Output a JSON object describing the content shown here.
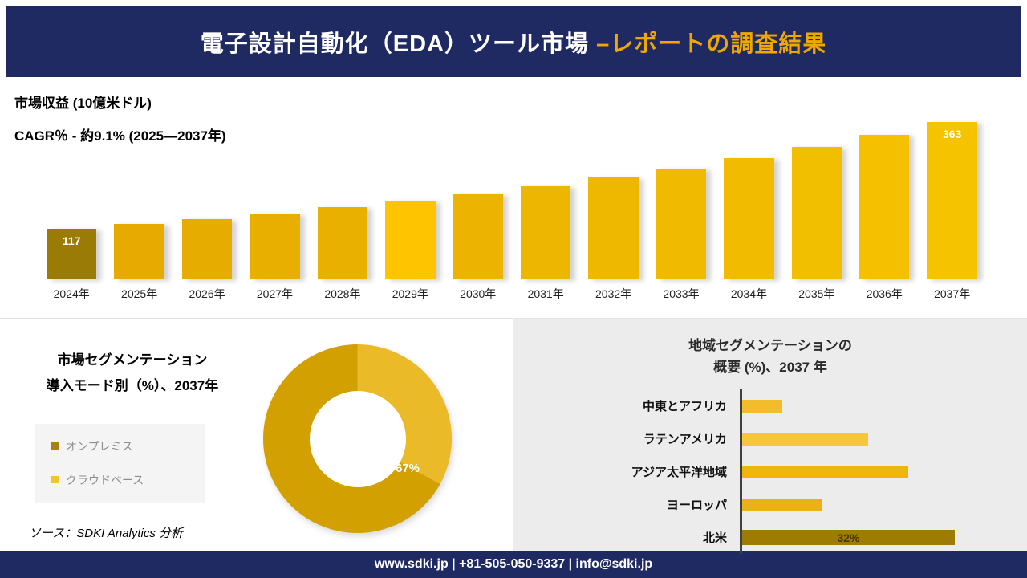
{
  "header": {
    "title_main": "電子設計自動化（EDA）ツール市場 ",
    "title_accent": "–レポートの調査結果"
  },
  "revenue_section": {
    "metric_label": "市場収益 (10億米ドル)",
    "cagr_label": "CAGR％ - 約9.1% (2025―2037年)"
  },
  "segmentation_section": {
    "title_line1": "市場セグメンテーション",
    "title_line2": "導入モード別（%）、2037年",
    "legend": [
      {
        "label": "オンプレミス",
        "color": "#a8830a"
      },
      {
        "label": "クラウドベース",
        "color": "#f0c235"
      }
    ],
    "source": "ソース：SDKI Analytics 分析"
  },
  "region_section": {
    "title_line1": "地域セグメンテーションの",
    "title_line2": "概要 (%)、2037 年"
  },
  "footer": {
    "contact": "www.sdki.jp | +81-505-050-9337 | info@sdki.jp"
  },
  "colors": {
    "navy": "#1f2a63",
    "gold_accent": "#f0a800",
    "panel_gray": "#ececec"
  },
  "chart_data": [
    {
      "id": "revenue_by_year",
      "type": "bar",
      "title": "市場収益 (10億米ドル)",
      "subtitle": "CAGR％ - 約9.1% (2025―2037年)",
      "categories": [
        "2024年",
        "2025年",
        "2026年",
        "2027年",
        "2028年",
        "2029年",
        "2030年",
        "2031年",
        "2032年",
        "2033年",
        "2034年",
        "2035年",
        "2036年",
        "2037年"
      ],
      "values": [
        117,
        128,
        139,
        152,
        166,
        181,
        197,
        215,
        235,
        256,
        280,
        305,
        333,
        363
      ],
      "labeled_points": [
        {
          "category": "2024年",
          "label": "117"
        },
        {
          "category": "2037年",
          "label": "363"
        }
      ],
      "bar_colors": [
        "#9a7b05",
        "#e6aa00",
        "#e7ac00",
        "#e8ae00",
        "#e9b000",
        "#ffc400",
        "#ecb400",
        "#edb600",
        "#eeb800",
        "#f0ba00",
        "#f1bc00",
        "#f2be00",
        "#f4c000",
        "#f5c300"
      ],
      "ylim": [
        0,
        380
      ],
      "xlabel": "",
      "ylabel": "市場収益 (10億米ドル)",
      "grid": false,
      "legend_position": "none"
    },
    {
      "id": "deployment_mode_share_2037",
      "type": "pie",
      "title": "市場セグメンテーション 導入モード別（%）、2037年",
      "labels": [
        "オンプレミス",
        "クラウドベース"
      ],
      "values": [
        67,
        33
      ],
      "colors": [
        "#d3a002",
        "#eaba28"
      ],
      "shown_label": "67%",
      "donut": true,
      "legend_position": "left"
    },
    {
      "id": "regional_share_2037",
      "type": "bar",
      "orientation": "horizontal",
      "title": "地域セグメンテーションの概要 (%)、2037 年",
      "categories": [
        "中東とアフリカ",
        "ラテンアメリカ",
        "アジア太平洋地域",
        "ヨーロッパ",
        "北米"
      ],
      "values": [
        6,
        19,
        25,
        12,
        32
      ],
      "colors": [
        "#f2bd2a",
        "#f5c73d",
        "#eeb50a",
        "#ecb117",
        "#9e7c01"
      ],
      "shown_label": "32%",
      "xlim": [
        0,
        35
      ],
      "grid": false
    }
  ]
}
